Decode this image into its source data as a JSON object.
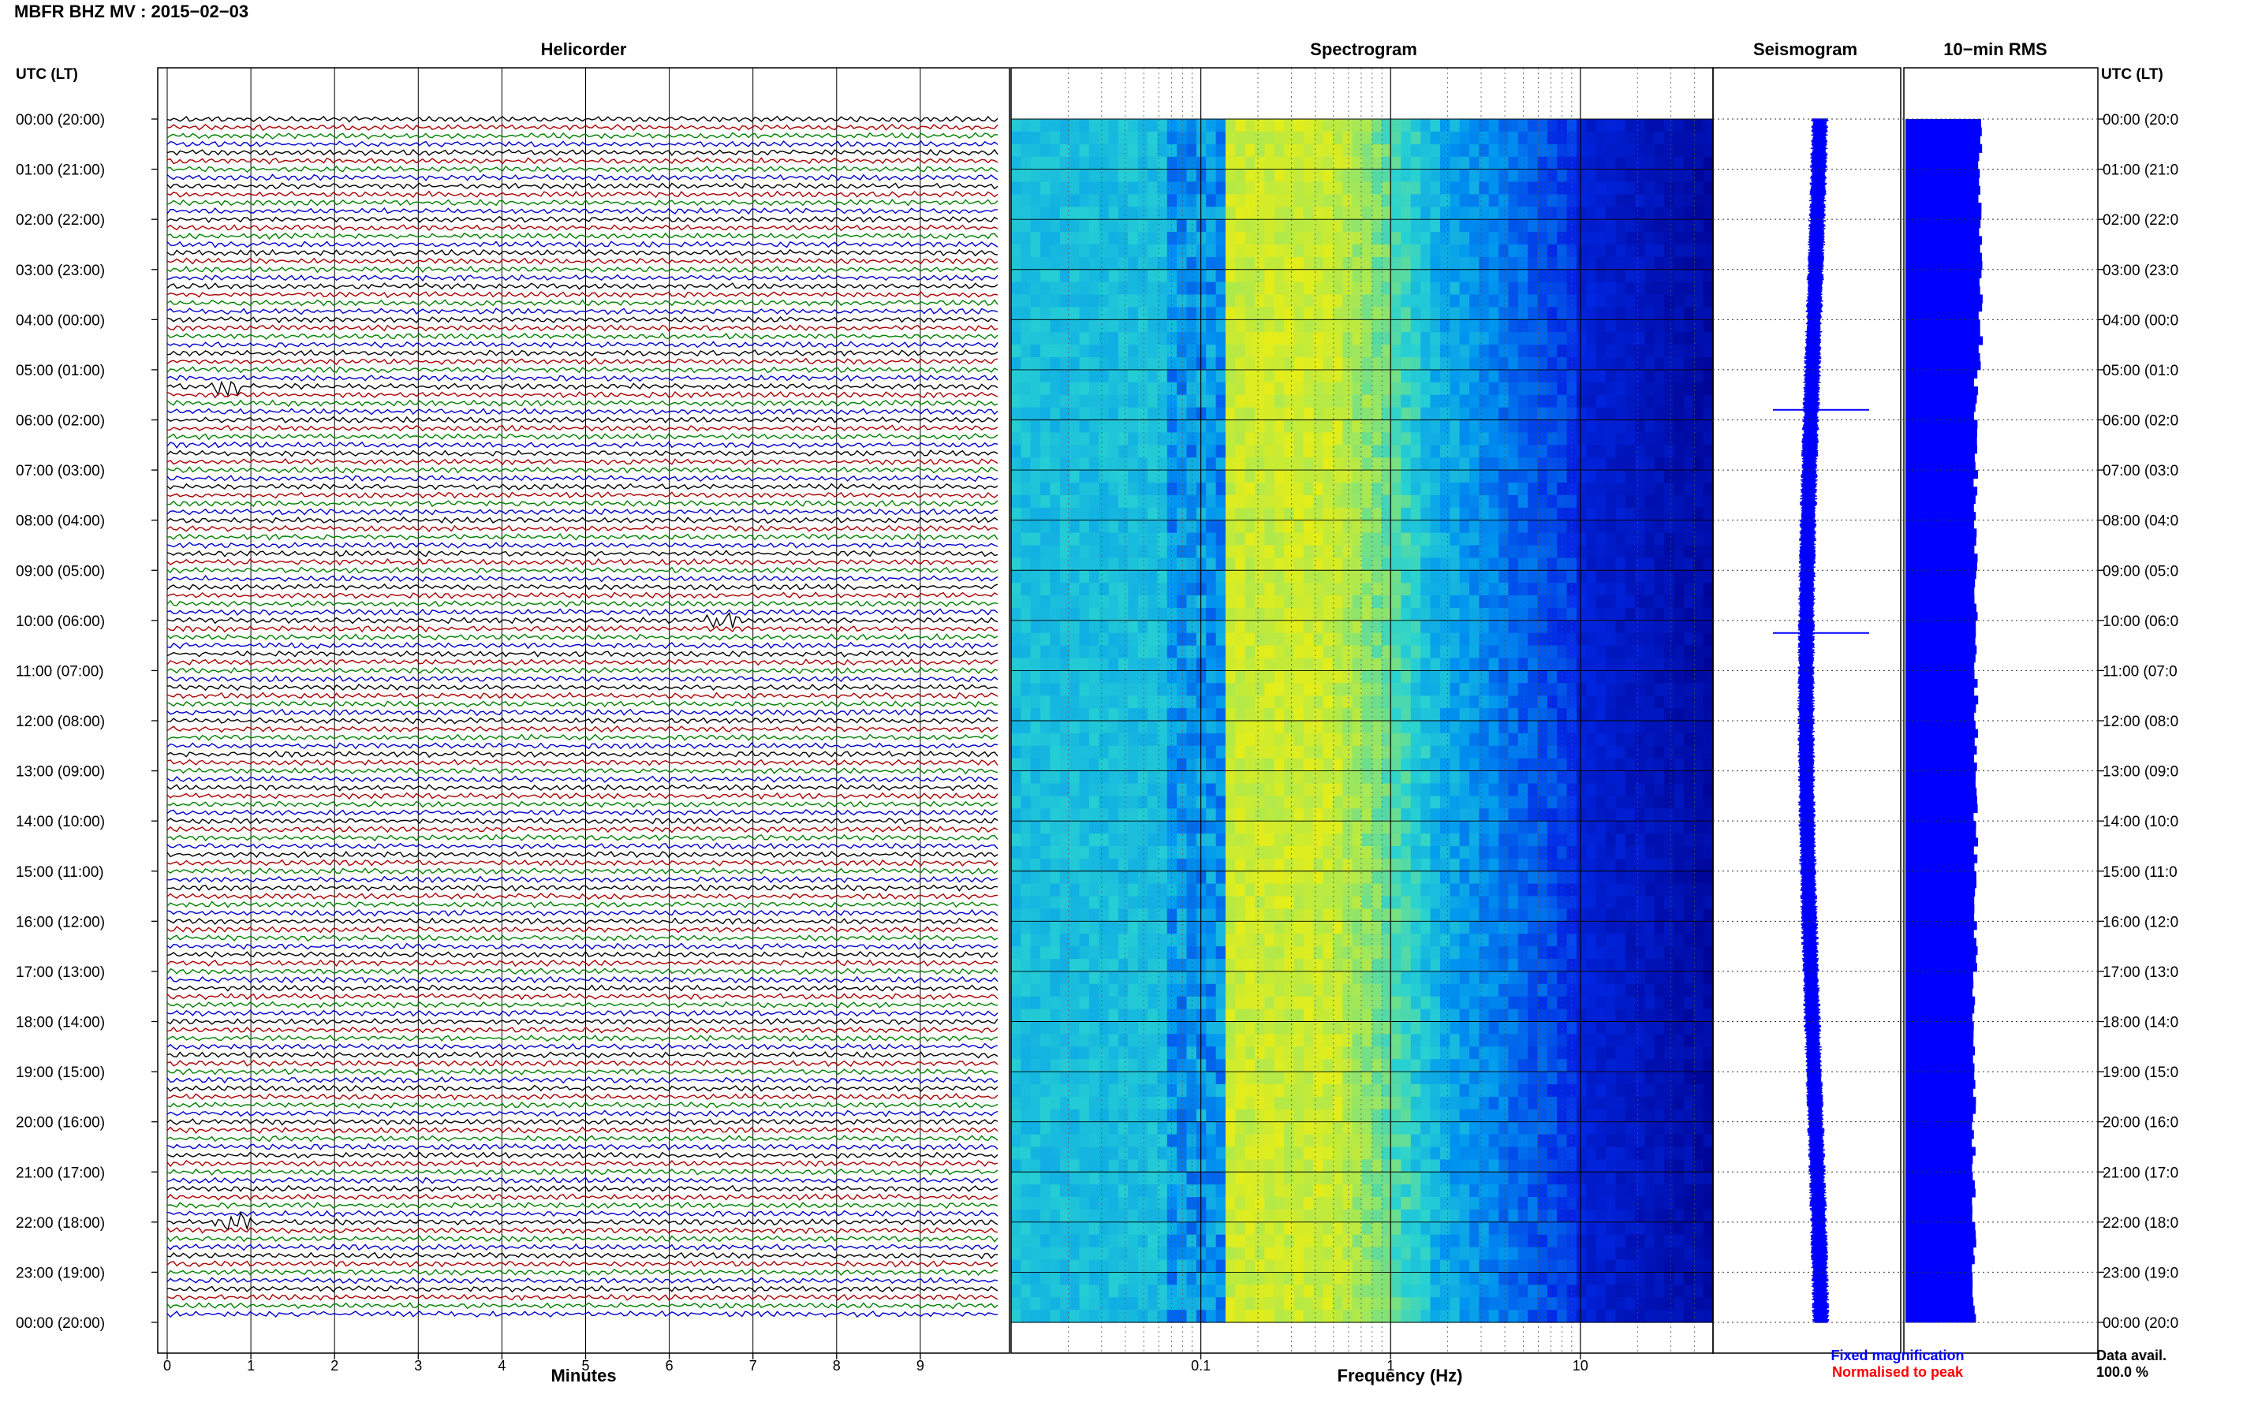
{
  "header": {
    "title": "MBFR BHZ MV : 2015−02−03"
  },
  "panels": {
    "helicorder": "Helicorder",
    "spectrogram": "Spectrogram",
    "seismogram": "Seismogram",
    "rms": "10−min RMS"
  },
  "axes": {
    "time_label_left": "UTC (LT)",
    "time_label_right": "UTC (LT)",
    "minutes_label": "Minutes",
    "frequency_label": "Frequency (Hz)",
    "time_ticks": [
      "00:00 (20:00)",
      "01:00 (21:00)",
      "02:00 (22:00)",
      "03:00 (23:00)",
      "04:00 (00:00)",
      "05:00 (01:00)",
      "06:00 (02:00)",
      "07:00 (03:00)",
      "08:00 (04:00)",
      "09:00 (05:00)",
      "10:00 (06:00)",
      "11:00 (07:00)",
      "12:00 (08:00)",
      "13:00 (09:00)",
      "14:00 (10:00)",
      "15:00 (11:00)",
      "16:00 (12:00)",
      "17:00 (13:00)",
      "18:00 (14:00)",
      "19:00 (15:00)",
      "20:00 (16:00)",
      "21:00 (17:00)",
      "22:00 (18:00)",
      "23:00 (19:00)",
      "00:00 (20:00)"
    ],
    "time_ticks_right": [
      "00:00 (20:0",
      "01:00 (21:0",
      "02:00 (22:0",
      "03:00 (23:0",
      "04:00 (00:0",
      "05:00 (01:0",
      "06:00 (02:0",
      "07:00 (03:0",
      "08:00 (04:0",
      "09:00 (05:0",
      "10:00 (06:0",
      "11:00 (07:0",
      "12:00 (08:0",
      "13:00 (09:0",
      "14:00 (10:0",
      "15:00 (11:0",
      "16:00 (12:0",
      "17:00 (13:0",
      "18:00 (14:0",
      "19:00 (15:0",
      "20:00 (16:0",
      "21:00 (17:0",
      "22:00 (18:0",
      "23:00 (19:0",
      "00:00 (20:0"
    ],
    "minute_ticks": [
      "0",
      "1",
      "2",
      "3",
      "4",
      "5",
      "6",
      "7",
      "8",
      "9"
    ],
    "frequency_ticks": [
      "0.1",
      "1",
      "10"
    ]
  },
  "legend": {
    "fixed": "Fixed magnification",
    "normalised": "Normalised to peak",
    "fixed_color": "#0000ff",
    "normalised_color": "#ff0000"
  },
  "availability": {
    "label": "Data avail.",
    "value": "100.0 %"
  },
  "colors": {
    "trace_cycle": [
      "#000000",
      "#aa0000",
      "#008000",
      "#0000cc"
    ],
    "spectrogram_low": "#00008b",
    "spectrogram_high": "#ffff00",
    "seismogram": "#0000ff",
    "rms_bar": "#0000ff"
  },
  "chart_data": [
    {
      "type": "line",
      "title": "Helicorder",
      "xlabel": "Minutes",
      "ylabel": "UTC (LT)",
      "xlim": [
        0,
        10
      ],
      "traces_per_hour": 6,
      "trace_minutes": 10,
      "hours": 24,
      "events": [
        {
          "hour": 5,
          "trace": 2,
          "minute": 0.7,
          "color": "green"
        },
        {
          "hour": 10,
          "trace": 0,
          "minute": 6.7,
          "color": "red"
        },
        {
          "hour": 22,
          "trace": 0,
          "minute": 0.8,
          "color": "red"
        }
      ]
    },
    {
      "type": "heatmap",
      "title": "Spectrogram",
      "xlabel": "Frequency (Hz)",
      "xscale": "log",
      "xlim": [
        0.01,
        50
      ],
      "ylim_hours": [
        0,
        24
      ],
      "peak_band_hz": [
        0.15,
        0.5
      ]
    },
    {
      "type": "line",
      "title": "Seismogram",
      "ylim_hours": [
        0,
        24
      ],
      "spikes": [
        {
          "hour": 5.8,
          "amplitude": 1.0
        },
        {
          "hour": 10.25,
          "amplitude": 1.0
        }
      ]
    },
    {
      "type": "bar",
      "title": "10−min RMS",
      "ylim_hours": [
        0,
        24
      ],
      "bins": 144,
      "relative_level": "roughly constant, slightly higher before 05:00"
    }
  ]
}
